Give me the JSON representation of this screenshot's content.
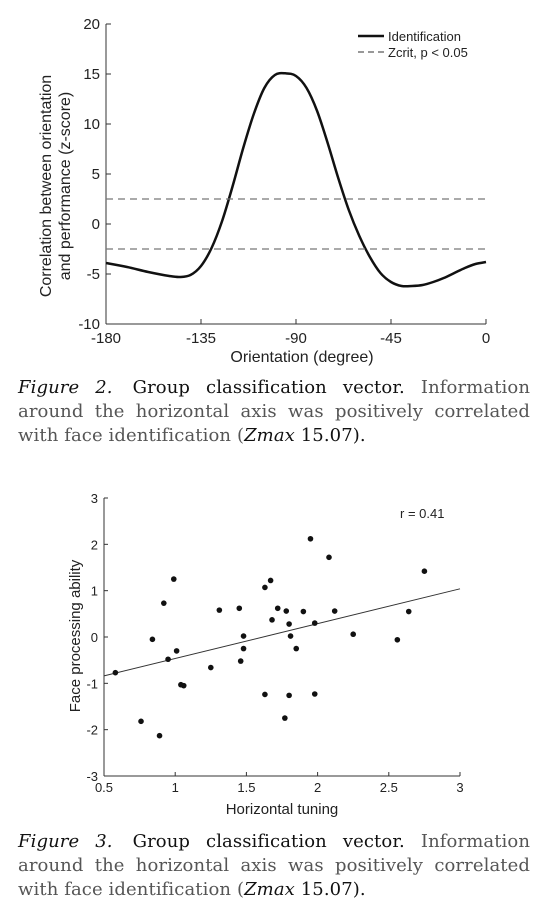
{
  "figure2": {
    "chart_data": {
      "type": "line",
      "xlabel": "Orientation (degree)",
      "ylabel_line1": "Correlation between orientation",
      "ylabel_line2": "and performance (z-score)",
      "xlim": [
        -180,
        0
      ],
      "ylim": [
        -10,
        20
      ],
      "xticks": [
        -180,
        -135,
        -90,
        -45,
        0
      ],
      "yticks": [
        -10,
        -5,
        0,
        5,
        10,
        15,
        20
      ],
      "xtick_labels": [
        "-180",
        "-135",
        "-90",
        "-45",
        "0"
      ],
      "ytick_labels": [
        "-10",
        "-5",
        "0",
        "5",
        "10",
        "15",
        "20"
      ],
      "legend_position": "top-right",
      "series": [
        {
          "name": "Identification",
          "style": "solid",
          "color": "#111111",
          "x": [
            -180,
            -170,
            -160,
            -150,
            -145,
            -140,
            -135,
            -130,
            -125,
            -120,
            -115,
            -110,
            -105,
            -100,
            -95,
            -90,
            -85,
            -80,
            -75,
            -70,
            -65,
            -60,
            -55,
            -50,
            -45,
            -40,
            -35,
            -30,
            -25,
            -20,
            -15,
            -10,
            -5,
            0
          ],
          "y": [
            -3.9,
            -4.3,
            -4.8,
            -5.2,
            -5.3,
            -5.1,
            -4.2,
            -2.4,
            0.3,
            3.8,
            7.6,
            11.0,
            13.6,
            14.9,
            15.07,
            14.8,
            13.6,
            11.3,
            8.1,
            4.6,
            1.4,
            -1.2,
            -3.3,
            -4.9,
            -5.8,
            -6.2,
            -6.2,
            -6.1,
            -5.8,
            -5.4,
            -4.9,
            -4.4,
            -4.0,
            -3.8
          ]
        },
        {
          "name": "Zcrit, p < 0.05",
          "style": "dashed",
          "color": "#777777",
          "x": [
            -180,
            0
          ],
          "y": [
            2.5,
            2.5
          ]
        },
        {
          "name": "Zcrit, p < 0.05 (lower)",
          "style": "dashed",
          "color": "#777777",
          "x": [
            -180,
            0
          ],
          "y": [
            -2.5,
            -2.5
          ]
        }
      ],
      "legend": [
        "Identification",
        "Zcrit, p < 0.05"
      ]
    },
    "caption": {
      "label": "Figure 2.",
      "title": "Group classification vector.",
      "text_before": "Information around the horizontal axis was positively correlated with face identification (",
      "zmax": "Zmax",
      "zvalue": " 15.07).",
      "text_full_line": ""
    }
  },
  "figure3": {
    "chart_data": {
      "type": "scatter",
      "xlabel": "Horizontal tuning",
      "ylabel": "Face processing ability",
      "xlim": [
        0.5,
        3
      ],
      "ylim": [
        -3,
        3
      ],
      "xticks": [
        0.5,
        1,
        1.5,
        2,
        2.5,
        3
      ],
      "yticks": [
        -3,
        -2,
        -1,
        0,
        1,
        2,
        3
      ],
      "xtick_labels": [
        "0.5",
        "1",
        "1.5",
        "2",
        "2.5",
        "3"
      ],
      "ytick_labels": [
        "-3",
        "-2",
        "-1",
        "0",
        "1",
        "2",
        "3"
      ],
      "annotation": "r = 0.41",
      "fit_line": {
        "x": [
          0.5,
          3
        ],
        "y": [
          -0.84,
          1.04
        ]
      },
      "points": [
        [
          0.58,
          -0.77
        ],
        [
          0.76,
          -1.82
        ],
        [
          0.84,
          -0.05
        ],
        [
          0.89,
          -2.13
        ],
        [
          0.92,
          0.73
        ],
        [
          0.95,
          -0.48
        ],
        [
          0.99,
          1.25
        ],
        [
          1.01,
          -0.3
        ],
        [
          1.04,
          -1.03
        ],
        [
          1.06,
          -1.05
        ],
        [
          1.25,
          -0.66
        ],
        [
          1.31,
          0.58
        ],
        [
          1.45,
          0.62
        ],
        [
          1.46,
          -0.52
        ],
        [
          1.48,
          0.02
        ],
        [
          1.48,
          -0.25
        ],
        [
          1.63,
          1.07
        ],
        [
          1.63,
          -1.24
        ],
        [
          1.67,
          1.22
        ],
        [
          1.68,
          0.37
        ],
        [
          1.72,
          0.62
        ],
        [
          1.77,
          -1.75
        ],
        [
          1.78,
          0.56
        ],
        [
          1.8,
          -1.26
        ],
        [
          1.8,
          0.28
        ],
        [
          1.81,
          0.02
        ],
        [
          1.85,
          -0.25
        ],
        [
          1.9,
          0.55
        ],
        [
          1.95,
          2.12
        ],
        [
          1.98,
          0.3
        ],
        [
          1.98,
          -1.23
        ],
        [
          2.08,
          1.72
        ],
        [
          2.12,
          0.56
        ],
        [
          2.25,
          0.06
        ],
        [
          2.56,
          -0.06
        ],
        [
          2.64,
          0.55
        ],
        [
          2.75,
          1.42
        ]
      ]
    },
    "caption": {
      "label": "Figure 3.",
      "title": "Group classification vector.",
      "text_before": "Information around the horizontal axis was positively correlated with face identification (",
      "zmax": "Zmax",
      "zvalue": " 15.07)."
    }
  }
}
